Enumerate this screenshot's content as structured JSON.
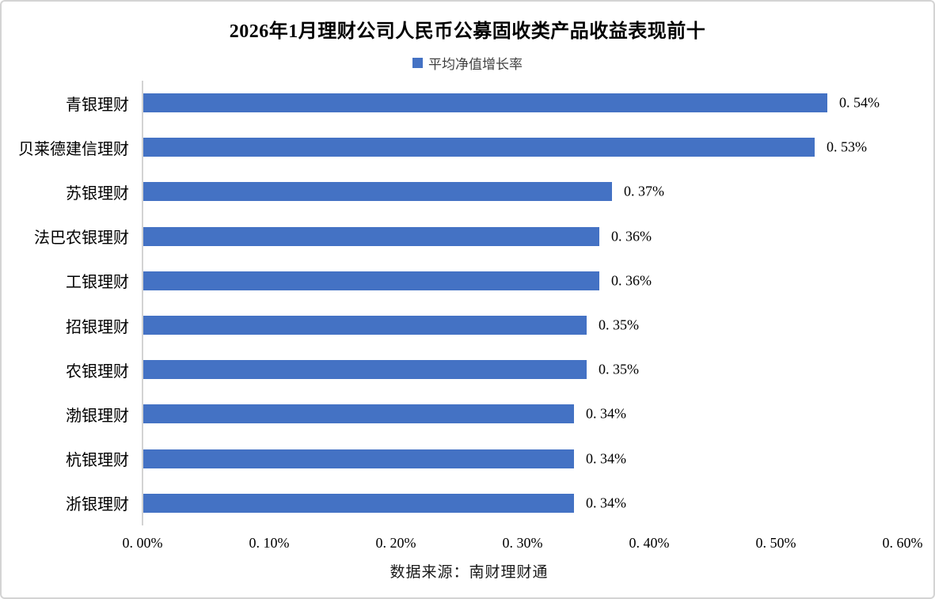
{
  "title": "2026年1月理财公司人民币公募固收类产品收益表现前十",
  "legend": {
    "label": "平均净值增长率",
    "marker_color": "#4472C4"
  },
  "source_note": "数据来源：南财理财通",
  "colors": {
    "bar": "#4472C4",
    "axis_line": "#D3D3D3",
    "frame_border": "#D4D4D4",
    "background": "#FFFFFF",
    "text": "#000000"
  },
  "chart_data": {
    "type": "bar",
    "orientation": "horizontal",
    "title": "2026年1月理财公司人民币公募固收类产品收益表现前十",
    "series_name": "平均净值增长率",
    "categories": [
      "青银理财",
      "贝莱德建信理财",
      "苏银理财",
      "法巴农银理财",
      "工银理财",
      "招银理财",
      "农银理财",
      "渤银理财",
      "杭银理财",
      "浙银理财"
    ],
    "values": [
      0.54,
      0.53,
      0.37,
      0.36,
      0.36,
      0.35,
      0.35,
      0.34,
      0.34,
      0.34
    ],
    "value_labels": [
      "0. 54%",
      "0. 53%",
      "0. 37%",
      "0. 36%",
      "0. 36%",
      "0. 35%",
      "0. 35%",
      "0. 34%",
      "0. 34%",
      "0. 34%"
    ],
    "unit": "%",
    "xlim": [
      0,
      0.6
    ],
    "x_tick_values": [
      0,
      0.1,
      0.2,
      0.3,
      0.4,
      0.5,
      0.6
    ],
    "x_tick_labels": [
      "0. 00%",
      "0. 10%",
      "0. 20%",
      "0. 30%",
      "0. 40%",
      "0. 50%",
      "0. 60%"
    ],
    "xlabel": "",
    "ylabel": "",
    "grid": false,
    "legend_position": "top",
    "data_labels": true,
    "footnote": "数据来源：南财理财通"
  }
}
